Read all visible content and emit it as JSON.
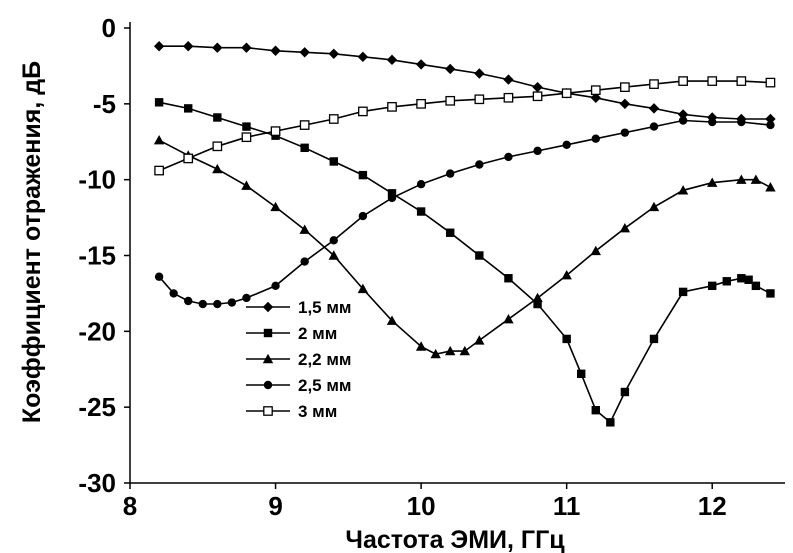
{
  "chart_data": {
    "type": "line",
    "title": "",
    "xlabel": "Частота ЭМИ, ГГц",
    "ylabel": "Коэффициент отражения, дБ",
    "xlim": [
      8,
      12.5
    ],
    "ylim": [
      -30,
      0
    ],
    "x_ticks": [
      8,
      9,
      10,
      11,
      12
    ],
    "y_ticks": [
      0,
      -5,
      -10,
      -15,
      -20,
      -25,
      -30
    ],
    "grid": false,
    "legend_position": "bottom-center",
    "series": [
      {
        "name": "1,5 мм",
        "marker": "diamond",
        "x": [
          8.2,
          8.4,
          8.6,
          8.8,
          9.0,
          9.2,
          9.4,
          9.6,
          9.8,
          10.0,
          10.2,
          10.4,
          10.6,
          10.8,
          11.0,
          11.2,
          11.4,
          11.6,
          11.8,
          12.0,
          12.2,
          12.4
        ],
        "y": [
          -1.2,
          -1.2,
          -1.3,
          -1.3,
          -1.5,
          -1.6,
          -1.7,
          -1.9,
          -2.1,
          -2.4,
          -2.7,
          -3.0,
          -3.4,
          -3.9,
          -4.3,
          -4.6,
          -5.0,
          -5.3,
          -5.7,
          -5.9,
          -6.0,
          -6.0
        ]
      },
      {
        "name": "2 мм",
        "marker": "square",
        "x": [
          8.2,
          8.4,
          8.6,
          8.8,
          9.0,
          9.2,
          9.4,
          9.6,
          9.8,
          10.0,
          10.2,
          10.4,
          10.6,
          10.8,
          11.0,
          11.1,
          11.2,
          11.3,
          11.4,
          11.6,
          11.8,
          12.0,
          12.1,
          12.2,
          12.25,
          12.3,
          12.4
        ],
        "y": [
          -4.9,
          -5.3,
          -5.9,
          -6.5,
          -7.1,
          -7.9,
          -8.8,
          -9.7,
          -10.9,
          -12.1,
          -13.5,
          -15.0,
          -16.5,
          -18.2,
          -20.5,
          -22.8,
          -25.2,
          -26.0,
          -24.0,
          -20.5,
          -17.4,
          -17.0,
          -16.7,
          -16.5,
          -16.6,
          -17.0,
          -17.5
        ]
      },
      {
        "name": "2,2 мм",
        "marker": "triangle",
        "x": [
          8.2,
          8.4,
          8.6,
          8.8,
          9.0,
          9.2,
          9.4,
          9.6,
          9.8,
          10.0,
          10.1,
          10.2,
          10.3,
          10.4,
          10.6,
          10.8,
          11.0,
          11.2,
          11.4,
          11.6,
          11.8,
          12.0,
          12.2,
          12.3,
          12.4
        ],
        "y": [
          -7.4,
          -8.4,
          -9.3,
          -10.4,
          -11.8,
          -13.3,
          -15.0,
          -17.2,
          -19.3,
          -21.0,
          -21.5,
          -21.3,
          -21.3,
          -20.6,
          -19.2,
          -17.8,
          -16.3,
          -14.7,
          -13.2,
          -11.8,
          -10.7,
          -10.2,
          -10.0,
          -10.0,
          -10.5
        ]
      },
      {
        "name": "2,5 мм",
        "marker": "circle",
        "x": [
          8.2,
          8.3,
          8.4,
          8.5,
          8.6,
          8.7,
          8.8,
          9.0,
          9.2,
          9.4,
          9.6,
          9.8,
          10.0,
          10.2,
          10.4,
          10.6,
          10.8,
          11.0,
          11.2,
          11.4,
          11.6,
          11.8,
          12.0,
          12.2,
          12.4
        ],
        "y": [
          -16.4,
          -17.5,
          -18.0,
          -18.2,
          -18.2,
          -18.1,
          -17.8,
          -17.0,
          -15.4,
          -14.0,
          -12.4,
          -11.2,
          -10.3,
          -9.6,
          -9.0,
          -8.5,
          -8.1,
          -7.7,
          -7.3,
          -6.9,
          -6.5,
          -6.1,
          -6.2,
          -6.2,
          -6.4
        ]
      },
      {
        "name": "3 мм",
        "marker": "open-square",
        "x": [
          8.2,
          8.4,
          8.6,
          8.8,
          9.0,
          9.2,
          9.4,
          9.6,
          9.8,
          10.0,
          10.2,
          10.4,
          10.6,
          10.8,
          11.0,
          11.2,
          11.4,
          11.6,
          11.8,
          12.0,
          12.2,
          12.4
        ],
        "y": [
          -9.4,
          -8.6,
          -7.8,
          -7.2,
          -6.8,
          -6.4,
          -6.0,
          -5.5,
          -5.2,
          -5.0,
          -4.8,
          -4.7,
          -4.6,
          -4.5,
          -4.3,
          -4.1,
          -3.9,
          -3.7,
          -3.5,
          -3.5,
          -3.5,
          -3.6
        ]
      }
    ]
  }
}
